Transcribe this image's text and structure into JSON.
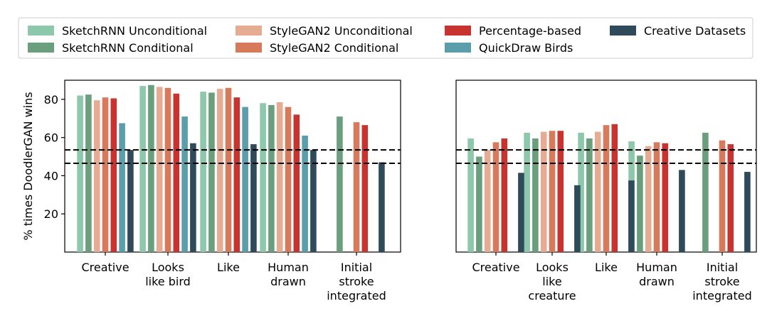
{
  "legend": {
    "placement": "top",
    "entries": [
      {
        "name": "SketchRNN Unconditional",
        "color": "#8dc8ad"
      },
      {
        "name": "SketchRNN Conditional",
        "color": "#6a9e7d"
      },
      {
        "name": "StyleGAN2 Unconditional",
        "color": "#e6ab93"
      },
      {
        "name": "StyleGAN2 Conditional",
        "color": "#d67a5b"
      },
      {
        "name": "Percentage-based",
        "color": "#c8332f"
      },
      {
        "name": "QuickDraw Birds",
        "color": "#5b9eab"
      },
      {
        "name": "Creative Datasets",
        "color": "#2e4a5b"
      }
    ]
  },
  "chart_data": [
    {
      "type": "bar",
      "ylabel": "% times DoodlerGAN wins",
      "ylim": [
        0,
        90
      ],
      "yticks": [
        20,
        40,
        60,
        80
      ],
      "reference_lines": [
        53.5,
        46.5
      ],
      "categories": [
        "Creative",
        "Looks\nlike bird",
        "Like",
        "Human\ndrawn",
        "Initial\nstroke\nintegrated"
      ],
      "series": [
        {
          "name": "SketchRNN Unconditional",
          "color": "#8dc8ad",
          "values": [
            82,
            87,
            84,
            78,
            null
          ]
        },
        {
          "name": "SketchRNN Conditional",
          "color": "#6a9e7d",
          "values": [
            82.5,
            87.5,
            83.5,
            77,
            71
          ]
        },
        {
          "name": "StyleGAN2 Unconditional",
          "color": "#e6ab93",
          "values": [
            79.5,
            86.5,
            85.5,
            78.5,
            null
          ]
        },
        {
          "name": "StyleGAN2 Conditional",
          "color": "#d67a5b",
          "values": [
            81,
            86,
            86,
            76,
            68
          ]
        },
        {
          "name": "Percentage-based",
          "color": "#c8332f",
          "values": [
            80.5,
            83,
            81,
            72,
            66.5
          ]
        },
        {
          "name": "QuickDraw Birds",
          "color": "#5b9eab",
          "values": [
            67.5,
            71,
            76,
            61,
            null
          ]
        },
        {
          "name": "Creative Datasets",
          "color": "#2e4a5b",
          "values": [
            53.5,
            57,
            56.5,
            53.5,
            47
          ]
        }
      ]
    },
    {
      "type": "bar",
      "ylabel": "",
      "ylim": [
        0,
        90
      ],
      "yticks": [],
      "reference_lines": [
        53.5,
        46.5
      ],
      "categories": [
        "Creative",
        "Looks\nlike\ncreature",
        "Like",
        "Human\ndrawn",
        "Initial\nstroke\nintegrated"
      ],
      "series": [
        {
          "name": "SketchRNN Unconditional",
          "color": "#8dc8ad",
          "values": [
            59.5,
            62.5,
            62.5,
            58,
            null
          ]
        },
        {
          "name": "SketchRNN Conditional",
          "color": "#6a9e7d",
          "values": [
            50,
            59.5,
            59.5,
            50.5,
            62.5
          ]
        },
        {
          "name": "StyleGAN2 Unconditional",
          "color": "#e6ab93",
          "values": [
            53.5,
            63,
            63,
            55.5,
            null
          ]
        },
        {
          "name": "StyleGAN2 Conditional",
          "color": "#d67a5b",
          "values": [
            57.5,
            63.5,
            66.5,
            57.5,
            58.5
          ]
        },
        {
          "name": "Percentage-based",
          "color": "#c8332f",
          "values": [
            59.5,
            63.5,
            67,
            57,
            56.5
          ]
        },
        {
          "name": "QuickDraw Birds",
          "color": "#5b9eab",
          "values": [
            null,
            null,
            null,
            null,
            null
          ]
        },
        {
          "name": "Creative Datasets",
          "color": "#2e4a5b",
          "values": [
            41.5,
            35,
            37.5,
            43,
            42
          ]
        }
      ]
    }
  ]
}
